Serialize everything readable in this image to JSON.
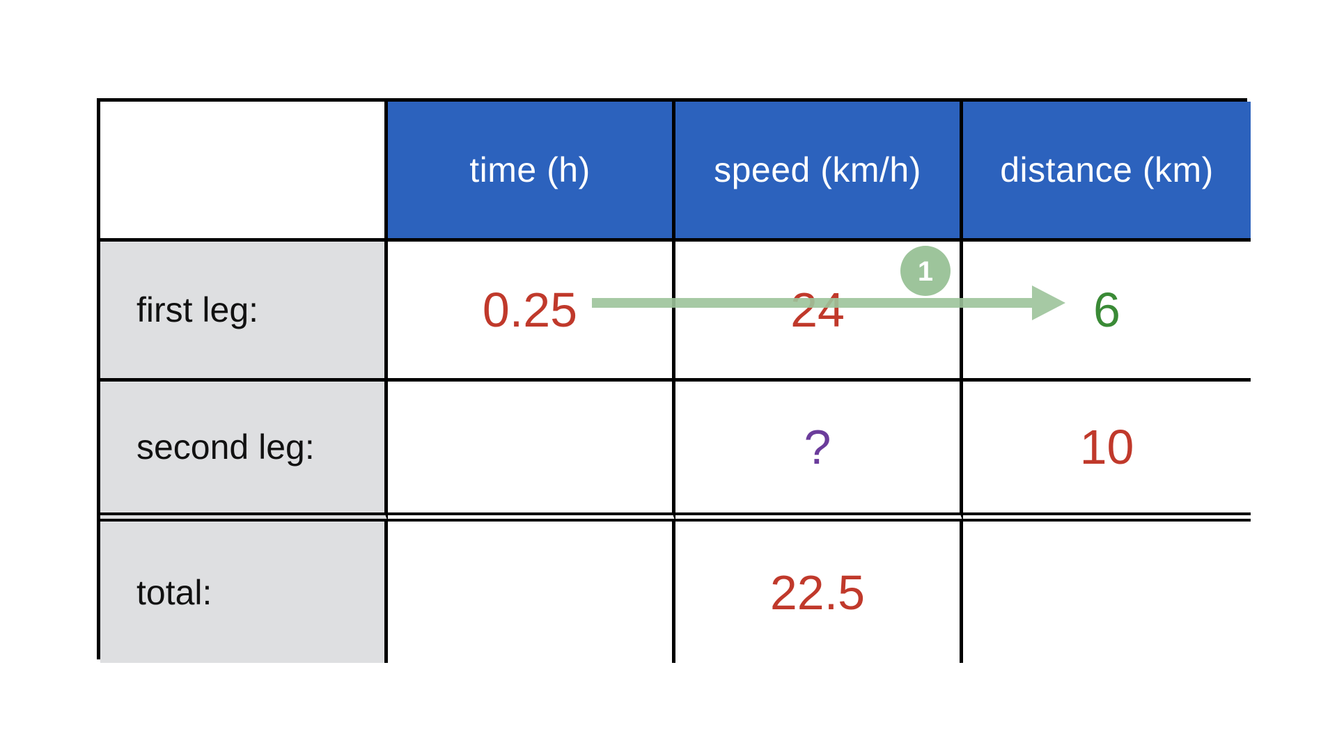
{
  "colors": {
    "header_bg": "#2c62bd",
    "label_bg": "#dedfe1",
    "given_value": "#c0392b",
    "computed_value": "#3a8a36",
    "unknown_value": "#6b3c9b",
    "arrow": "#9dc49b"
  },
  "table": {
    "headers": [
      "",
      "time (h)",
      "speed (km/h)",
      "distance (km)"
    ],
    "rows": [
      {
        "label": "first leg:",
        "time": "0.25",
        "speed": "24",
        "distance": "6"
      },
      {
        "label": "second leg:",
        "time": "",
        "speed": "?",
        "distance": "10"
      },
      {
        "label": "total:",
        "time": "",
        "speed": "22.5",
        "distance": ""
      }
    ]
  },
  "annotation": {
    "step_number": "1",
    "icon": "right-arrow-icon"
  }
}
